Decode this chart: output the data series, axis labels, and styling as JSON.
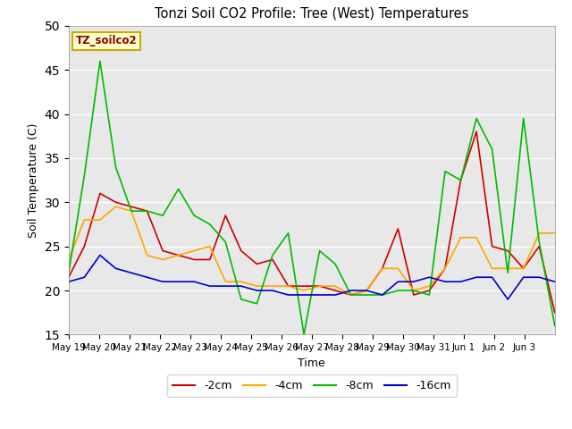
{
  "title": "Tonzi Soil CO2 Profile: Tree (West) Temperatures",
  "ylabel": "Soil Temperature (C)",
  "xlabel": "Time",
  "ylim": [
    15,
    50
  ],
  "background_color": "#e8e8e8",
  "legend_label": "TZ_soilco2",
  "x_labels": [
    "May 19",
    "May 20",
    "May 21",
    "May 22",
    "May 23",
    "May 24",
    "May 25",
    "May 26",
    "May 27",
    "May 28",
    "May 29",
    "May 30",
    "May 31",
    "Jun 1",
    "Jun 2",
    "Jun 3"
  ],
  "series": {
    "-2cm": {
      "color": "#cc0000",
      "values": [
        21.5,
        25.0,
        31.0,
        30.0,
        29.5,
        29.0,
        24.5,
        24.0,
        23.5,
        23.5,
        28.5,
        24.5,
        23.0,
        23.5,
        20.5,
        20.5,
        20.5,
        20.0,
        19.5,
        20.0,
        22.5,
        27.0,
        19.5,
        20.0,
        22.5,
        32.5,
        38.0,
        25.0,
        24.5,
        22.5,
        25.0,
        17.5
      ]
    },
    "-4cm": {
      "color": "#ffa500",
      "values": [
        23.5,
        28.0,
        28.0,
        29.5,
        29.0,
        24.0,
        23.5,
        24.0,
        24.5,
        25.0,
        21.0,
        21.0,
        20.5,
        20.5,
        20.5,
        20.0,
        20.5,
        20.5,
        19.5,
        20.0,
        22.5,
        22.5,
        20.0,
        20.5,
        22.5,
        26.0,
        26.0,
        22.5,
        22.5,
        22.5,
        26.5,
        26.5
      ]
    },
    "-8cm": {
      "color": "#00bb00",
      "values": [
        22.0,
        33.0,
        46.0,
        34.0,
        29.0,
        29.0,
        28.5,
        31.5,
        28.5,
        27.5,
        25.5,
        19.0,
        18.5,
        24.0,
        26.5,
        15.0,
        24.5,
        23.0,
        19.5,
        19.5,
        19.5,
        20.0,
        20.0,
        19.5,
        33.5,
        32.5,
        39.5,
        36.0,
        22.0,
        39.5,
        25.5,
        16.0
      ]
    },
    "-16cm": {
      "color": "#0000cc",
      "values": [
        21.0,
        21.5,
        24.0,
        22.5,
        22.0,
        21.5,
        21.0,
        21.0,
        21.0,
        20.5,
        20.5,
        20.5,
        20.0,
        20.0,
        19.5,
        19.5,
        19.5,
        19.5,
        20.0,
        20.0,
        19.5,
        21.0,
        21.0,
        21.5,
        21.0,
        21.0,
        21.5,
        21.5,
        19.0,
        21.5,
        21.5,
        21.0
      ]
    }
  },
  "n_points": 32,
  "n_days": 16
}
